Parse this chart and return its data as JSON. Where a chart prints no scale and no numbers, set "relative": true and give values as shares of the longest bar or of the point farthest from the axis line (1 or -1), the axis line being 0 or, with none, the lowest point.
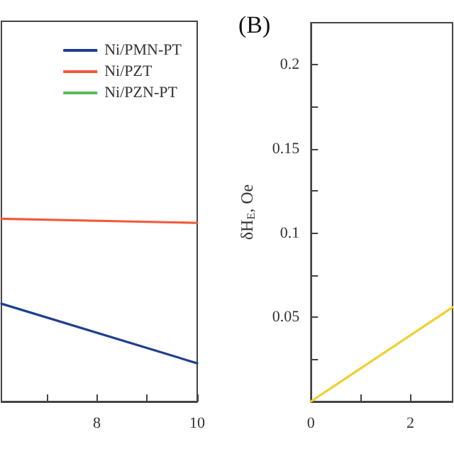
{
  "chart_data": [
    {
      "type": "line",
      "relative": true,
      "x": [
        6.1,
        10
      ],
      "xlim": [
        6.1,
        10
      ],
      "xticks": [
        {
          "value": 7,
          "label": null
        },
        8,
        {
          "value": 9,
          "label": null
        },
        10
      ],
      "tick_labels": "x",
      "legend": "top right",
      "series": [
        {
          "name": "Ni/PMN-PT",
          "color": "#1f3f8f",
          "values": [
            0.535,
            0.209
          ]
        },
        {
          "name": "Ni/PZT",
          "color": "#f05a3a",
          "values": [
            1,
            0.977
          ]
        },
        {
          "name": "Ni/PZN-PT",
          "color": "#5cb85c",
          "values": [
            null,
            null
          ]
        }
      ]
    },
    {
      "type": "line",
      "title": "(B)",
      "ylabel": "δH$_{E}$, Oe",
      "x": [
        0,
        2.85
      ],
      "xlim": [
        0,
        2.85
      ],
      "xticks": [
        0,
        {
          "value": 1,
          "label": null
        },
        2
      ],
      "ylim": [
        0,
        0.225
      ],
      "yticks": [
        {
          "value": 0.025,
          "label": null
        },
        0.05,
        {
          "value": 0.075,
          "label": null
        },
        0.1,
        {
          "value": 0.125,
          "label": null
        },
        0.15,
        {
          "value": 0.175,
          "label": null
        },
        0.2
      ],
      "series": [
        {
          "color": "#f0d030",
          "values": [
            0,
            0.056
          ]
        }
      ]
    }
  ]
}
